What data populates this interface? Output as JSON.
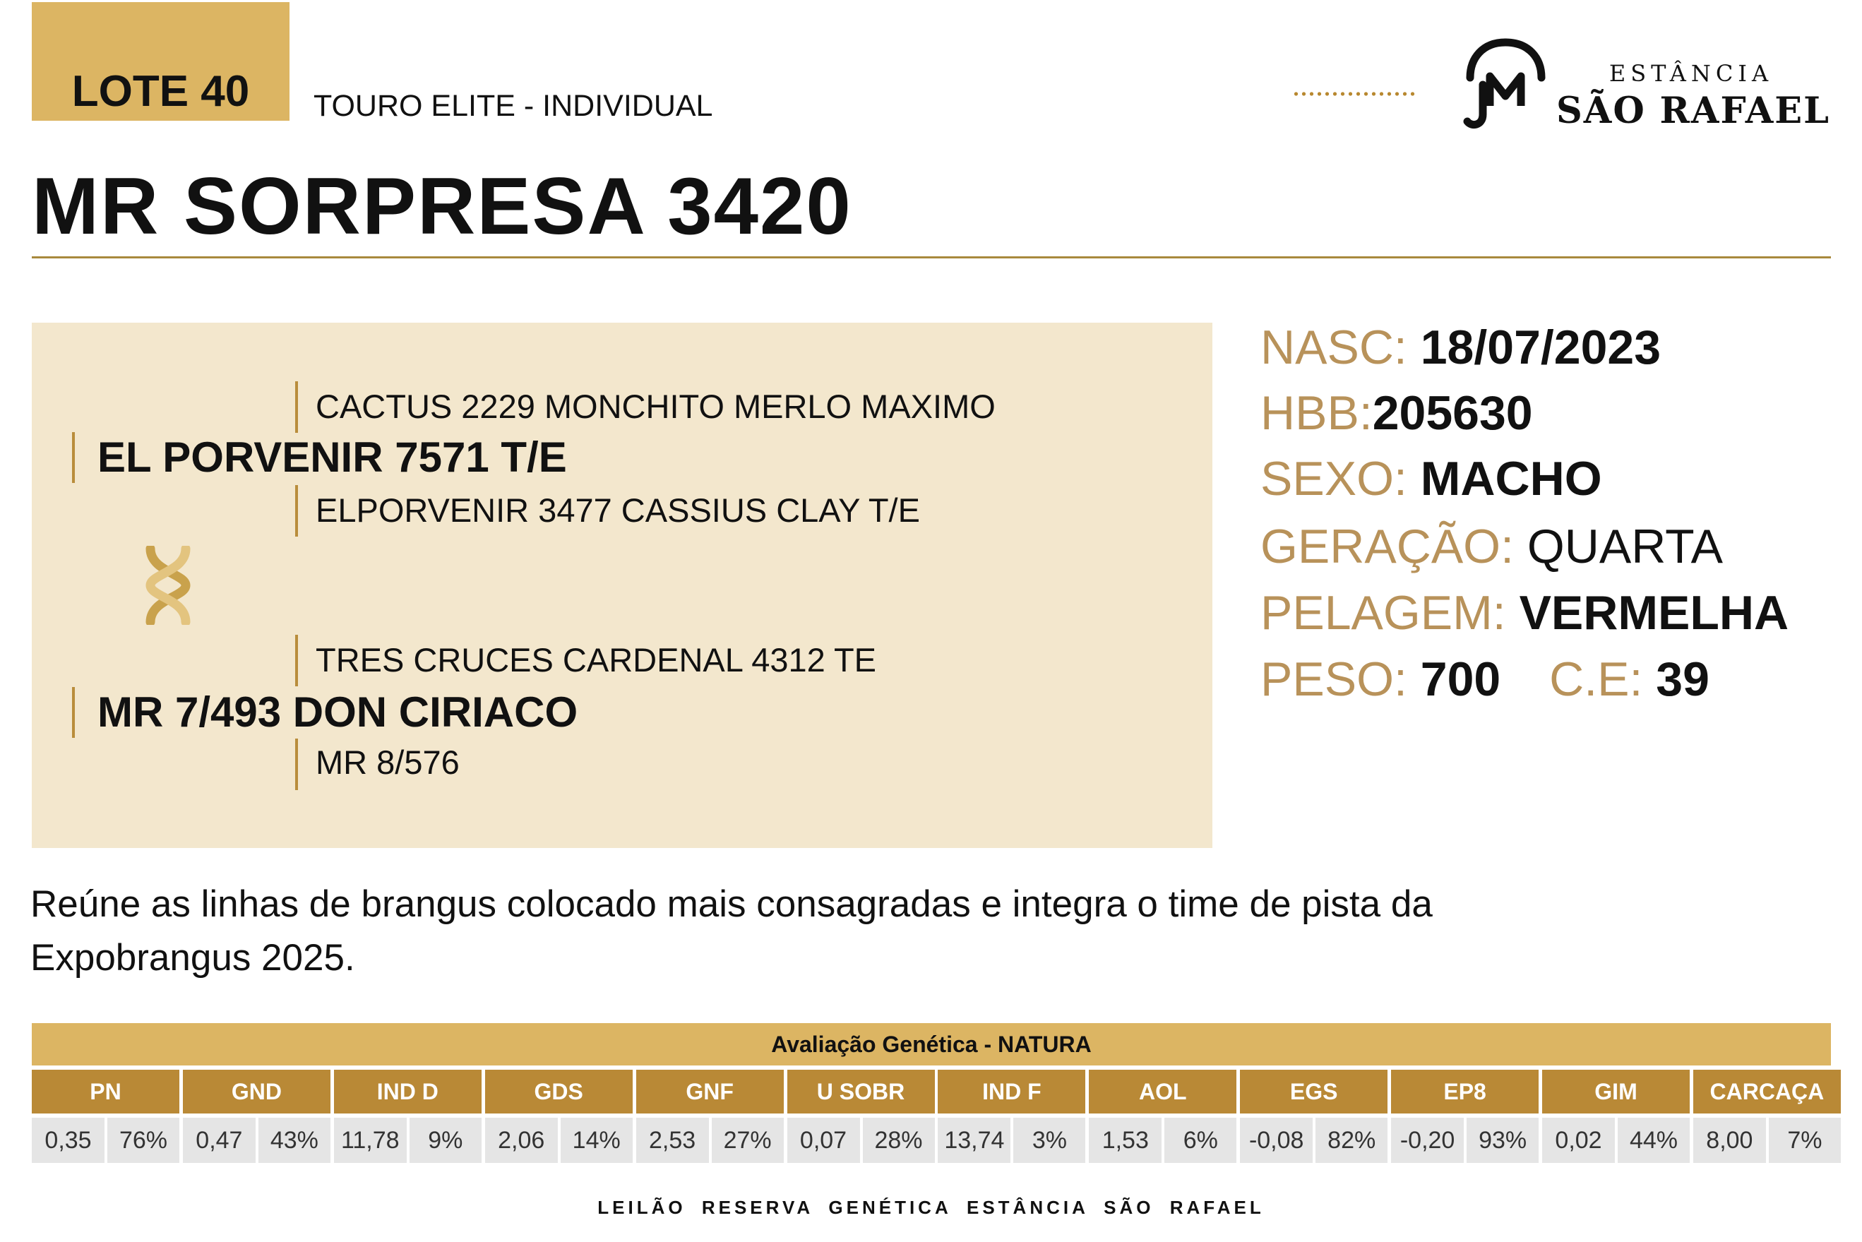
{
  "header": {
    "lote": "LOTE 40",
    "category": "TOURO ELITE - INDIVIDUAL",
    "brand_small": "ESTÂNCIA",
    "brand_big": "SÃO RAFAEL"
  },
  "title": "MR SORPRESA 3420",
  "pedigree": {
    "sire": {
      "name": "EL PORVENIR 7571 T/E",
      "sire": "CACTUS 2229 MONCHITO MERLO MAXIMO",
      "dam": "ELPORVENIR 3477 CASSIUS CLAY T/E"
    },
    "dam": {
      "name": "MR 7/493 DON CIRIACO",
      "sire": "TRES CRUCES CARDENAL 4312 TE",
      "dam": "MR 8/576"
    }
  },
  "info": {
    "nasc_label": "NASC:",
    "nasc_value": "18/07/2023",
    "hbb_label": "HBB:",
    "hbb_value": "205630",
    "sexo_label": "SEXO:",
    "sexo_value": "MACHO",
    "geracao_label": "GERAÇÃO:",
    "geracao_value": "QUARTA",
    "pelagem_label": "PELAGEM:",
    "pelagem_value": "VERMELHA",
    "peso_label": "PESO:",
    "peso_value": "700",
    "ce_label": "C.E:",
    "ce_value": "39"
  },
  "description": "Reúne as linhas de brangus colocado mais consagradas e integra o time de pista da Expobrangus 2025.",
  "evaluation": {
    "title": "Avaliação Genética - NATURA",
    "columns": [
      {
        "label": "PN",
        "value": "0,35",
        "percent": "76%"
      },
      {
        "label": "GND",
        "value": "0,47",
        "percent": "43%"
      },
      {
        "label": "IND D",
        "value": "11,78",
        "percent": "9%"
      },
      {
        "label": "GDS",
        "value": "2,06",
        "percent": "14%"
      },
      {
        "label": "GNF",
        "value": "2,53",
        "percent": "27%"
      },
      {
        "label": "U SOBR",
        "value": "0,07",
        "percent": "28%"
      },
      {
        "label": "IND F",
        "value": "13,74",
        "percent": "3%"
      },
      {
        "label": "AOL",
        "value": "1,53",
        "percent": "6%"
      },
      {
        "label": "EGS",
        "value": "-0,08",
        "percent": "82%"
      },
      {
        "label": "EP8",
        "value": "-0,20",
        "percent": "93%"
      },
      {
        "label": "GIM",
        "value": "0,02",
        "percent": "44%"
      },
      {
        "label": "CARCAÇA",
        "value": "8,00",
        "percent": "7%"
      }
    ]
  },
  "footer": "LEILÃO RESERVA GENÉTICA ESTÂNCIA SÃO RAFAEL",
  "colors": {
    "gold": "#dcb563",
    "dark_gold": "#b98936",
    "label_gold": "#b8925a",
    "cream": "#f3e7cd",
    "cell_gray": "#e5e5e5"
  }
}
